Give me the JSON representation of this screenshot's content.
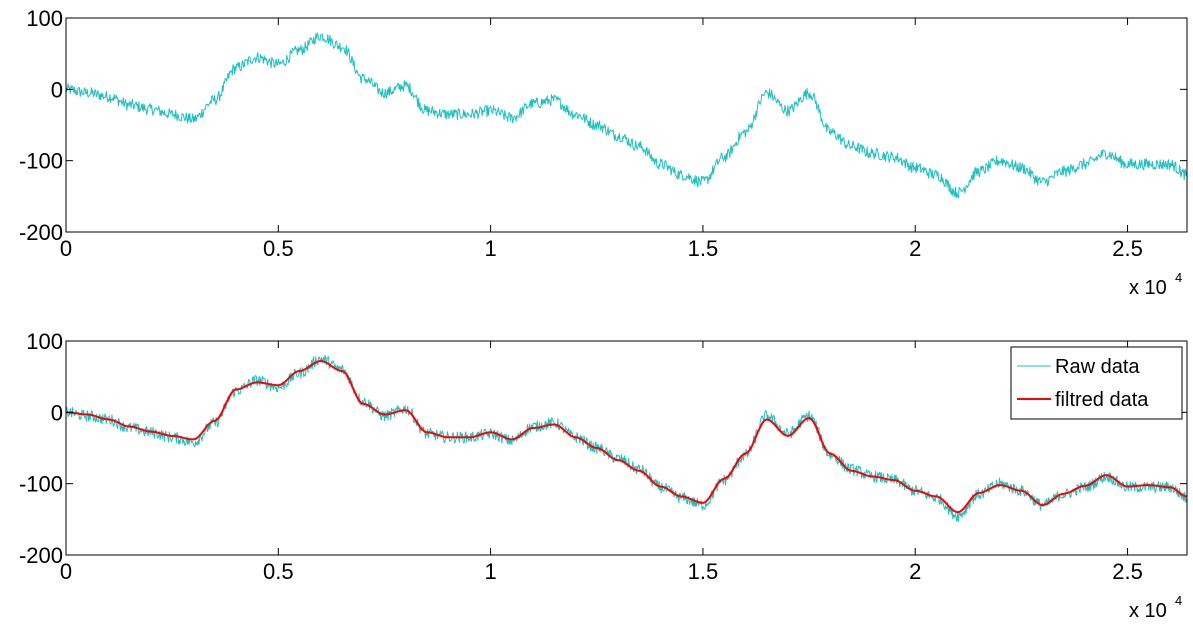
{
  "chart_data": [
    {
      "type": "line",
      "title": "",
      "xlabel": "",
      "ylabel": "",
      "xlim": [
        0,
        26400
      ],
      "ylim": [
        -200,
        100
      ],
      "x_ticks": [
        0,
        5000,
        10000,
        15000,
        20000,
        25000
      ],
      "x_tick_labels": [
        "0",
        "0.5",
        "1",
        "1.5",
        "2",
        "2.5"
      ],
      "y_ticks": [
        -200,
        -100,
        0,
        100
      ],
      "y_tick_labels": [
        "-200",
        "-100",
        "0",
        "100"
      ],
      "x_exponent_label": {
        "base": "x 10",
        "exponent": "4"
      },
      "grid": false,
      "legend": null,
      "series": [
        {
          "color": "#20c0c0",
          "x": [
            0,
            500,
            1000,
            1500,
            2000,
            2500,
            3000,
            3500,
            4000,
            4500,
            5000,
            5500,
            6000,
            6500,
            7000,
            7500,
            8000,
            8500,
            9000,
            9500,
            10000,
            10500,
            11000,
            11500,
            12000,
            12500,
            13000,
            13500,
            14000,
            14500,
            15000,
            15500,
            16000,
            16500,
            17000,
            17500,
            18000,
            18500,
            19000,
            19500,
            20000,
            20500,
            21000,
            21500,
            22000,
            22500,
            23000,
            23500,
            24000,
            24500,
            25000,
            25500,
            26000,
            26400
          ],
          "values": [
            0,
            -5,
            -10,
            -22,
            -28,
            -35,
            -42,
            -15,
            30,
            45,
            35,
            55,
            75,
            60,
            15,
            -5,
            5,
            -30,
            -35,
            -35,
            -30,
            -40,
            -20,
            -15,
            -35,
            -50,
            -65,
            -80,
            -105,
            -120,
            -130,
            -95,
            -60,
            -5,
            -30,
            -5,
            -60,
            -80,
            -90,
            -95,
            -110,
            -120,
            -145,
            -115,
            -100,
            -110,
            -130,
            -115,
            -105,
            -90,
            -105,
            -105,
            -105,
            -120
          ]
        }
      ]
    },
    {
      "type": "line",
      "title": "",
      "xlabel": "",
      "ylabel": "",
      "xlim": [
        0,
        26400
      ],
      "ylim": [
        -200,
        100
      ],
      "x_ticks": [
        0,
        5000,
        10000,
        15000,
        20000,
        25000
      ],
      "x_tick_labels": [
        "0",
        "0.5",
        "1",
        "1.5",
        "2",
        "2.5"
      ],
      "y_ticks": [
        -200,
        -100,
        0,
        100
      ],
      "y_tick_labels": [
        "-200",
        "-100",
        "0",
        "100"
      ],
      "x_exponent_label": {
        "base": "x 10",
        "exponent": "4"
      },
      "grid": false,
      "legend": "top-right",
      "series": [
        {
          "name": "Raw data",
          "color": "#20c0c0",
          "x": [
            0,
            500,
            1000,
            1500,
            2000,
            2500,
            3000,
            3500,
            4000,
            4500,
            5000,
            5500,
            6000,
            6500,
            7000,
            7500,
            8000,
            8500,
            9000,
            9500,
            10000,
            10500,
            11000,
            11500,
            12000,
            12500,
            13000,
            13500,
            14000,
            14500,
            15000,
            15500,
            16000,
            16500,
            17000,
            17500,
            18000,
            18500,
            19000,
            19500,
            20000,
            20500,
            21000,
            21500,
            22000,
            22500,
            23000,
            23500,
            24000,
            24500,
            25000,
            25500,
            26000,
            26400
          ],
          "values": [
            0,
            -5,
            -10,
            -22,
            -28,
            -35,
            -42,
            -15,
            30,
            45,
            35,
            55,
            75,
            60,
            15,
            -5,
            5,
            -30,
            -35,
            -35,
            -30,
            -40,
            -20,
            -15,
            -35,
            -50,
            -65,
            -80,
            -105,
            -120,
            -130,
            -95,
            -60,
            -5,
            -30,
            -5,
            -60,
            -80,
            -90,
            -95,
            -110,
            -120,
            -145,
            -115,
            -100,
            -110,
            -130,
            -115,
            -105,
            -90,
            -105,
            -105,
            -105,
            -120
          ]
        },
        {
          "name": "filtred data",
          "color": "#ff0000",
          "x": [
            0,
            500,
            1000,
            1500,
            2000,
            2500,
            3000,
            3500,
            4000,
            4500,
            5000,
            5500,
            6000,
            6500,
            7000,
            7500,
            8000,
            8500,
            9000,
            9500,
            10000,
            10500,
            11000,
            11500,
            12000,
            12500,
            13000,
            13500,
            14000,
            14500,
            15000,
            15500,
            16000,
            16500,
            17000,
            17500,
            18000,
            18500,
            19000,
            19500,
            20000,
            20500,
            21000,
            21500,
            22000,
            22500,
            23000,
            23500,
            24000,
            24500,
            25000,
            25500,
            26000,
            26400
          ],
          "values": [
            0,
            -3,
            -10,
            -20,
            -27,
            -33,
            -38,
            -12,
            32,
            42,
            38,
            58,
            72,
            58,
            12,
            -3,
            3,
            -28,
            -35,
            -35,
            -28,
            -38,
            -22,
            -17,
            -35,
            -50,
            -67,
            -82,
            -104,
            -118,
            -127,
            -93,
            -58,
            -10,
            -33,
            -8,
            -58,
            -82,
            -90,
            -95,
            -110,
            -118,
            -140,
            -113,
            -102,
            -110,
            -130,
            -114,
            -103,
            -88,
            -104,
            -102,
            -105,
            -118
          ]
        }
      ]
    }
  ]
}
